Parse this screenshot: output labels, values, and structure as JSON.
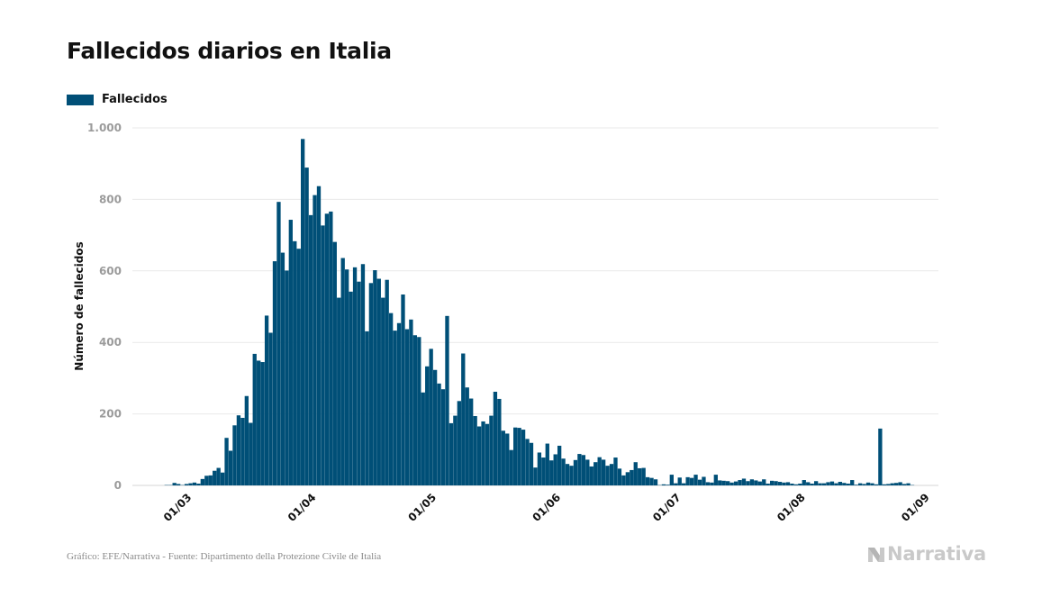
{
  "header": {
    "title": "Fallecidos diarios en Italia"
  },
  "footer": {
    "source": "Gráfico: EFE/Narrativa - Fuente: Dipartimento della Protezione Civile de Italia",
    "logo_text": "Narrativa"
  },
  "colors": {
    "bar": "#004f77",
    "grid": "#e9e9e9",
    "tick_text": "#9b9b9b",
    "axis_title": "#111111"
  },
  "chart_data": {
    "type": "bar",
    "title": "Fallecidos diarios en Italia",
    "xlabel": "",
    "ylabel": "Número de fallecidos",
    "ylim": [
      0,
      1000
    ],
    "yticks": [
      0,
      200,
      400,
      600,
      800,
      1000
    ],
    "ytick_labels": [
      "0",
      "200",
      "400",
      "600",
      "800",
      "1.000"
    ],
    "xtick_labels": [
      "01/03",
      "01/04",
      "01/05",
      "01/06",
      "01/07",
      "01/08",
      "01/09"
    ],
    "xtick_dates": [
      "2020-03-01",
      "2020-04-01",
      "2020-05-01",
      "2020-06-01",
      "2020-07-01",
      "2020-08-01",
      "2020-09-01"
    ],
    "grid": true,
    "legend": {
      "position": "top-left"
    },
    "start_date": "2020-02-16",
    "series": [
      {
        "name": "Fallecidos",
        "values": [
          0,
          0,
          0,
          0,
          0,
          0,
          0,
          0,
          1,
          1,
          7,
          4,
          1,
          4,
          6,
          8,
          5,
          18,
          27,
          28,
          41,
          49,
          36,
          133,
          97,
          168,
          196,
          189,
          250,
          175,
          368,
          349,
          345,
          475,
          427,
          627,
          793,
          651,
          601,
          743,
          683,
          662,
          969,
          889,
          756,
          812,
          837,
          727,
          760,
          766,
          681,
          525,
          636,
          604,
          542,
          610,
          570,
          619,
          431,
          566,
          602,
          578,
          525,
          575,
          482,
          433,
          454,
          534,
          437,
          464,
          420,
          415,
          260,
          333,
          382,
          323,
          285,
          269,
          474,
          174,
          195,
          236,
          369,
          274,
          243,
          194,
          165,
          179,
          172,
          195,
          262,
          242,
          153,
          145,
          99,
          162,
          161,
          156,
          130,
          119,
          50,
          92,
          78,
          117,
          70,
          87,
          111,
          75,
          60,
          55,
          71,
          88,
          85,
          72,
          53,
          65,
          79,
          72,
          55,
          60,
          78,
          47,
          28,
          37,
          43,
          65,
          48,
          49,
          23,
          21,
          17,
          1,
          3,
          2,
          30,
          6,
          22,
          6,
          23,
          21,
          30,
          16,
          24,
          9,
          8,
          30,
          14,
          13,
          12,
          8,
          11,
          15,
          19,
          12,
          17,
          14,
          11,
          17,
          5,
          13,
          12,
          10,
          8,
          9,
          5,
          3,
          5,
          15,
          9,
          5,
          12,
          6,
          6,
          9,
          11,
          6,
          10,
          7,
          5,
          15,
          2,
          6,
          4,
          8,
          6,
          3,
          159,
          3,
          4,
          6,
          7,
          9,
          4,
          6,
          1
        ]
      }
    ]
  }
}
